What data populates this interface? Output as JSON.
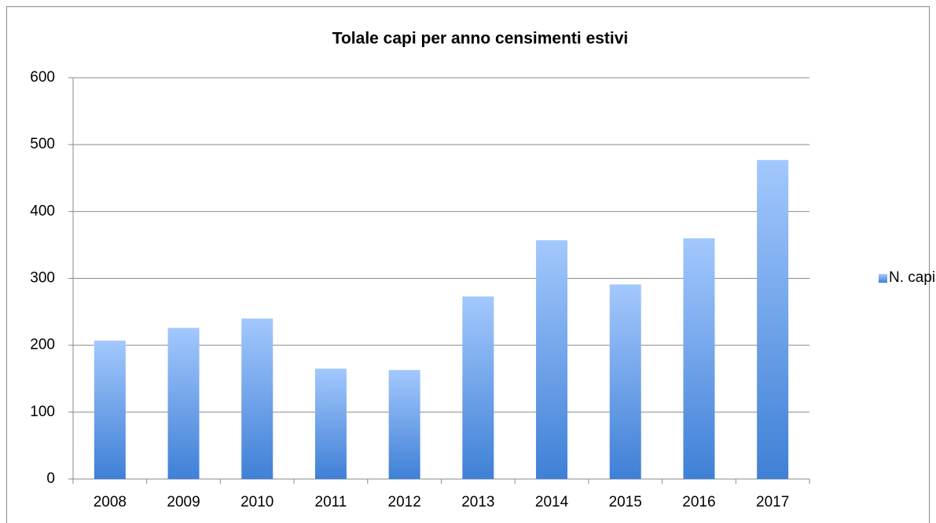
{
  "chart_data": {
    "type": "bar",
    "title": "Tolale capi per anno censimenti estivi",
    "categories": [
      "2008",
      "2009",
      "2010",
      "2011",
      "2012",
      "2013",
      "2014",
      "2015",
      "2016",
      "2017"
    ],
    "series": [
      {
        "name": "N. capi",
        "color": "#3f80d6",
        "values": [
          207,
          226,
          240,
          165,
          163,
          273,
          357,
          291,
          360,
          477
        ]
      }
    ],
    "ylim": [
      0,
      600
    ],
    "yticks": [
      0,
      100,
      200,
      300,
      400,
      500,
      600
    ],
    "grid": true,
    "legend": "right"
  }
}
